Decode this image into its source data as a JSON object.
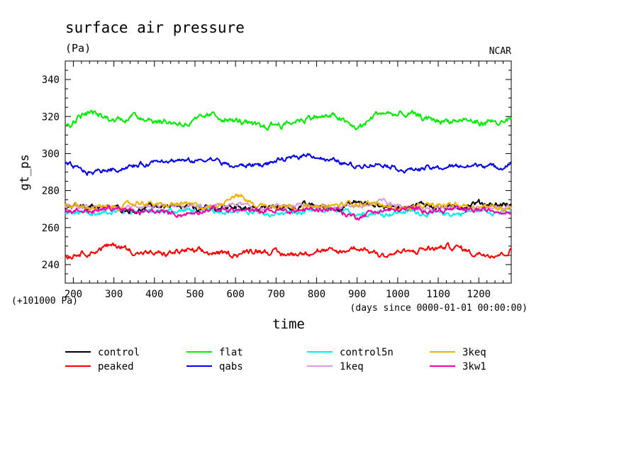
{
  "chart_data": {
    "type": "line",
    "title": "surface air pressure",
    "units": "(Pa)",
    "credit": "NCAR",
    "ylabel": "gt_ps",
    "xlabel": "time",
    "y_offset_note": "(+101000 Pa)",
    "x_units_note": "(days since 0000-01-01 00:00:00)",
    "xlim": [
      180,
      1280
    ],
    "ylim": [
      230,
      350
    ],
    "x_ticks": [
      "200",
      "300",
      "400",
      "500",
      "600",
      "700",
      "800",
      "900",
      "1000",
      "1100",
      "1200"
    ],
    "y_ticks": [
      "240",
      "260",
      "280",
      "300",
      "320",
      "340"
    ],
    "series": [
      {
        "name": "control",
        "color": "#000000",
        "base": 271,
        "amp": 1.8,
        "x": [
          180,
          240,
          300,
          360,
          420,
          480,
          540,
          600,
          660,
          720,
          780,
          840,
          900,
          960,
          1020,
          1080,
          1140,
          1200,
          1260,
          1280
        ],
        "values": [
          271,
          272,
          271,
          270,
          272,
          271,
          270,
          272,
          271,
          271,
          272,
          271,
          273,
          271,
          271,
          272,
          271,
          272,
          272,
          271
        ]
      },
      {
        "name": "peaked",
        "color": "#ff0000",
        "base": 247,
        "amp": 1.8,
        "x": [
          180,
          240,
          300,
          360,
          420,
          480,
          540,
          600,
          660,
          720,
          780,
          840,
          900,
          960,
          1020,
          1080,
          1140,
          1200,
          1260,
          1280
        ],
        "values": [
          245,
          247,
          250,
          247,
          245,
          247,
          246,
          246,
          248,
          246,
          247,
          246,
          248,
          246,
          247,
          248,
          249,
          246,
          247,
          248
        ]
      },
      {
        "name": "flat",
        "color": "#00ee00",
        "base": 318,
        "amp": 2.0,
        "x": [
          180,
          240,
          300,
          360,
          420,
          480,
          540,
          600,
          660,
          720,
          780,
          840,
          900,
          960,
          1020,
          1080,
          1140,
          1200,
          1260,
          1280
        ],
        "values": [
          316,
          323,
          318,
          321,
          318,
          317,
          321,
          318,
          315,
          317,
          320,
          320,
          314,
          322,
          320,
          318,
          317,
          316,
          316,
          318
        ]
      },
      {
        "name": "qabs",
        "color": "#0000ee",
        "base": 294,
        "amp": 1.5,
        "x": [
          180,
          240,
          300,
          360,
          420,
          480,
          540,
          600,
          660,
          720,
          780,
          840,
          900,
          960,
          1020,
          1080,
          1140,
          1200,
          1260,
          1280
        ],
        "values": [
          294,
          290,
          292,
          294,
          296,
          295,
          296,
          293,
          294,
          296,
          300,
          296,
          294,
          294,
          291,
          292,
          293,
          294,
          292,
          295
        ]
      },
      {
        "name": "control5n",
        "color": "#00eeee",
        "base": 268,
        "amp": 1.6,
        "x": [
          180,
          240,
          300,
          360,
          420,
          480,
          540,
          600,
          660,
          720,
          780,
          840,
          900,
          960,
          1020,
          1080,
          1140,
          1200,
          1260,
          1280
        ],
        "values": [
          267,
          268,
          268,
          269,
          268,
          269,
          270,
          269,
          268,
          268,
          268,
          269,
          268,
          268,
          269,
          268,
          267,
          269,
          268,
          268
        ]
      },
      {
        "name": "1keq",
        "color": "#dd99dd",
        "base": 271,
        "amp": 1.6,
        "x": [
          180,
          240,
          300,
          360,
          420,
          480,
          540,
          600,
          660,
          720,
          780,
          840,
          900,
          960,
          1020,
          1080,
          1140,
          1200,
          1260,
          1280
        ],
        "values": [
          271,
          271,
          270,
          271,
          270,
          272,
          271,
          272,
          270,
          271,
          271,
          272,
          271,
          274,
          271,
          270,
          271,
          270,
          271,
          270
        ]
      },
      {
        "name": "3keq",
        "color": "#f0b000",
        "base": 272,
        "amp": 1.6,
        "x": [
          180,
          240,
          300,
          360,
          420,
          480,
          540,
          600,
          660,
          720,
          780,
          840,
          900,
          960,
          1020,
          1080,
          1140,
          1200,
          1260,
          1280
        ],
        "values": [
          272,
          271,
          271,
          273,
          272,
          273,
          270,
          277,
          272,
          272,
          271,
          272,
          273,
          272,
          271,
          272,
          273,
          272,
          271,
          272
        ]
      },
      {
        "name": "3kw1",
        "color": "#ee00aa",
        "base": 269,
        "amp": 1.7,
        "x": [
          180,
          240,
          300,
          360,
          420,
          480,
          540,
          600,
          660,
          720,
          780,
          840,
          900,
          960,
          1020,
          1080,
          1140,
          1200,
          1260,
          1280
        ],
        "values": [
          269,
          269,
          270,
          268,
          269,
          267,
          269,
          270,
          268,
          269,
          270,
          270,
          266,
          269,
          270,
          269,
          270,
          270,
          269,
          268
        ]
      }
    ]
  }
}
